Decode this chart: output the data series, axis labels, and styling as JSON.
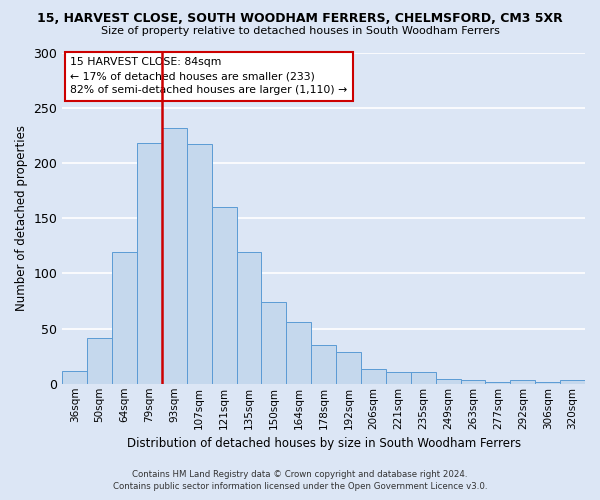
{
  "title1": "15, HARVEST CLOSE, SOUTH WOODHAM FERRERS, CHELMSFORD, CM3 5XR",
  "title2": "Size of property relative to detached houses in South Woodham Ferrers",
  "xlabel": "Distribution of detached houses by size in South Woodham Ferrers",
  "ylabel": "Number of detached properties",
  "footer1": "Contains HM Land Registry data © Crown copyright and database right 2024.",
  "footer2": "Contains public sector information licensed under the Open Government Licence v3.0.",
  "categories": [
    "36sqm",
    "50sqm",
    "64sqm",
    "79sqm",
    "93sqm",
    "107sqm",
    "121sqm",
    "135sqm",
    "150sqm",
    "164sqm",
    "178sqm",
    "192sqm",
    "206sqm",
    "221sqm",
    "235sqm",
    "249sqm",
    "263sqm",
    "277sqm",
    "292sqm",
    "306sqm",
    "320sqm"
  ],
  "values": [
    12,
    41,
    119,
    218,
    232,
    217,
    160,
    119,
    74,
    56,
    35,
    29,
    13,
    11,
    11,
    4,
    3,
    2,
    3,
    2,
    3
  ],
  "bar_color": "#c5d8ed",
  "bar_edge_color": "#5b9bd5",
  "vline_x": 3.5,
  "vline_color": "#cc0000",
  "annotation_title": "15 HARVEST CLOSE: 84sqm",
  "annotation_line1": "← 17% of detached houses are smaller (233)",
  "annotation_line2": "82% of semi-detached houses are larger (1,110) →",
  "annotation_box_color": "#ffffff",
  "annotation_box_edge": "#cc0000",
  "ylim": [
    0,
    300
  ],
  "yticks": [
    0,
    50,
    100,
    150,
    200,
    250,
    300
  ],
  "background_color": "#dce6f5",
  "plot_background": "#dce6f5",
  "grid_color": "#ffffff"
}
